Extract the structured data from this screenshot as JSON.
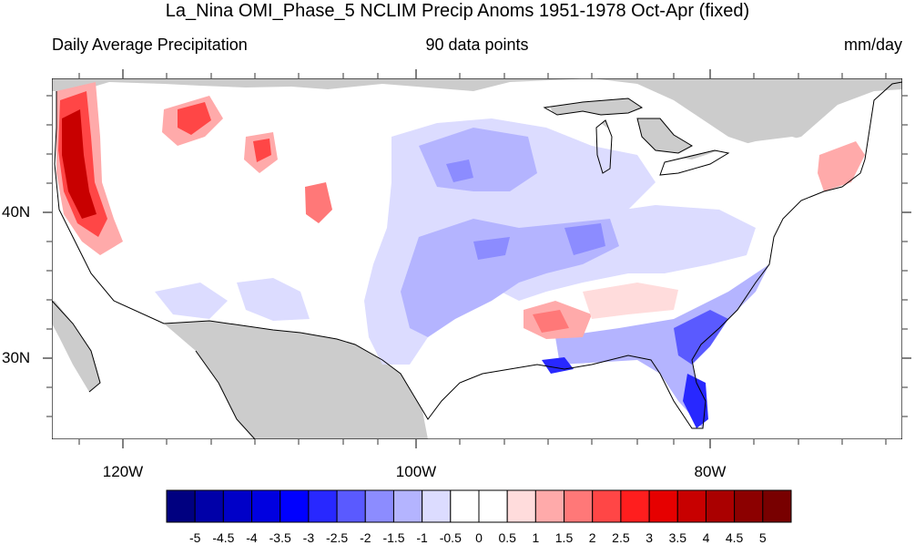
{
  "title": "La_Nina OMI_Phase_5 NCLIM Precip Anoms 1951-1978 Oct-Apr (fixed)",
  "subtitle_left": "Daily Average Precipitation",
  "subtitle_center": "90 data points",
  "subtitle_right": "mm/day",
  "lat_labels": [
    "40N",
    "30N"
  ],
  "lon_labels": [
    "120W",
    "100W",
    "80W"
  ],
  "colorbar": {
    "labels": [
      "-5",
      "-4.5",
      "-4",
      "-3.5",
      "-3",
      "-2.5",
      "-2",
      "-1.5",
      "-1",
      "-0.5",
      "0",
      "0.5",
      "1",
      "1.5",
      "2",
      "2.5",
      "3",
      "3.5",
      "4",
      "4.5",
      "5"
    ],
    "colors": [
      "#000080",
      "#0000a8",
      "#0000c8",
      "#0000e0",
      "#0000ff",
      "#2828ff",
      "#5a5aff",
      "#8c8cff",
      "#b4b4ff",
      "#dcdcff",
      "#ffffff",
      "#ffffff",
      "#ffdcdc",
      "#ffaaaa",
      "#ff7878",
      "#ff4646",
      "#ff1e1e",
      "#e60000",
      "#c80000",
      "#aa0000",
      "#8c0000",
      "#780000"
    ]
  },
  "colors": {
    "land_mask": "#cccccc",
    "ocean": "#ffffff"
  }
}
